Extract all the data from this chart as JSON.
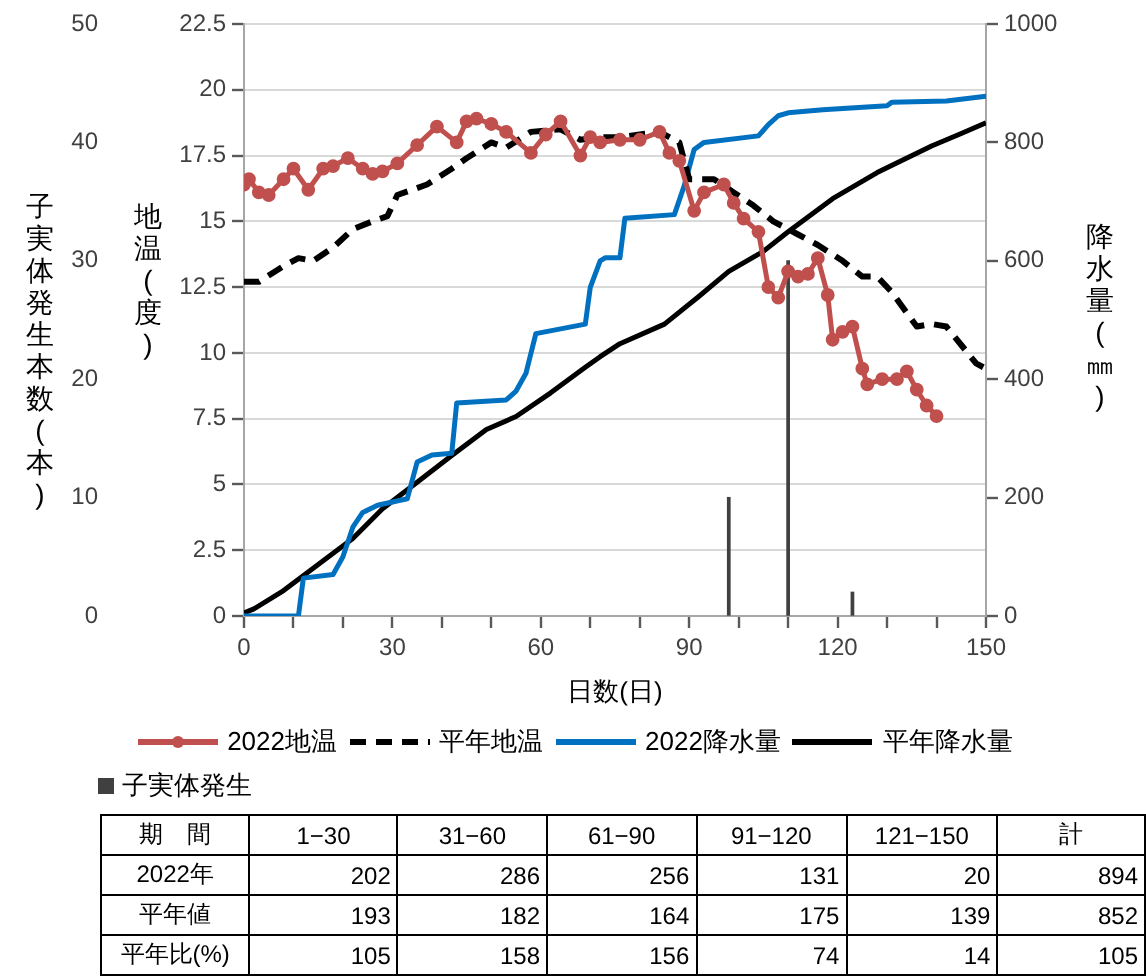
{
  "chart_data": [
    {
      "type": "line",
      "xlabel": "日数(日)",
      "ylabel": "地温(度)",
      "y2label": "降水量(㎜)",
      "y3label": "子実体発生本数(本)",
      "xlim": [
        0,
        150
      ],
      "xticks": [
        0,
        {
          "value": 10,
          "label": null
        },
        {
          "value": 20,
          "label": null
        },
        30,
        {
          "value": 40,
          "label": null
        },
        {
          "value": 50,
          "label": null
        },
        60,
        {
          "value": 70,
          "label": null
        },
        {
          "value": 80,
          "label": null
        },
        90,
        {
          "value": 100,
          "label": null
        },
        {
          "value": 110,
          "label": null
        },
        120,
        {
          "value": 130,
          "label": null
        },
        {
          "value": 140,
          "label": null
        },
        150
      ],
      "ylim": [
        0,
        22.5
      ],
      "yticks": [
        0,
        2.5,
        5,
        7.5,
        10,
        12.5,
        15,
        17.5,
        20,
        22.5
      ],
      "y2lim": [
        0,
        1000
      ],
      "y2ticks": [
        0,
        200,
        400,
        600,
        800,
        1000
      ],
      "y3lim": [
        0,
        50
      ],
      "y3ticks": [
        0,
        10,
        20,
        30,
        40,
        50
      ],
      "grid": "y",
      "legend": "bottom",
      "series": [
        {
          "name": "2022地温",
          "type": "line",
          "color": "#c0504d",
          "marker": "circle",
          "line_style": "solid",
          "x": [
            0,
            1,
            3,
            5,
            8,
            10,
            13,
            16,
            18,
            21,
            24,
            26,
            28,
            31,
            35,
            39,
            43,
            45,
            47,
            50,
            53,
            58,
            61,
            64,
            68,
            70,
            72,
            76,
            80,
            84,
            86,
            88,
            91,
            93,
            97,
            99,
            101,
            104,
            106,
            108,
            110,
            112,
            114,
            116,
            118,
            119,
            121,
            123,
            125,
            126,
            129,
            132,
            134,
            136,
            138,
            140
          ],
          "values": [
            16.4,
            16.6,
            16.1,
            16.0,
            16.6,
            17.0,
            16.2,
            17.0,
            17.1,
            17.4,
            17.0,
            16.8,
            16.9,
            17.2,
            17.9,
            18.6,
            18.0,
            18.8,
            18.9,
            18.7,
            18.4,
            17.6,
            18.3,
            18.8,
            17.5,
            18.2,
            18.0,
            18.1,
            18.1,
            18.4,
            17.6,
            17.3,
            15.4,
            16.1,
            16.4,
            15.7,
            15.1,
            14.6,
            12.5,
            12.1,
            13.1,
            12.9,
            13.0,
            13.6,
            12.2,
            10.5,
            10.8,
            11.0,
            9.4,
            8.8,
            9.0,
            9.0,
            9.3,
            8.6,
            8.0,
            7.6
          ]
        },
        {
          "name": "平年地温",
          "type": "line",
          "color": "#000000",
          "marker": "none",
          "line_style": "dashed",
          "x": [
            0,
            3,
            8,
            11,
            14,
            18,
            22,
            26,
            29,
            31,
            37,
            42,
            45,
            50,
            53,
            58,
            64,
            68,
            72,
            76,
            80,
            84,
            88,
            90,
            95,
            99,
            103,
            107,
            112,
            116,
            121,
            125,
            128,
            131,
            136,
            139,
            142,
            145,
            148,
            150
          ],
          "values": [
            12.7,
            12.7,
            13.3,
            13.6,
            13.5,
            14.0,
            14.7,
            15.0,
            15.2,
            16.0,
            16.4,
            17.0,
            17.4,
            18.0,
            17.8,
            18.4,
            18.5,
            18.1,
            18.2,
            18.2,
            18.3,
            18.4,
            18.0,
            16.6,
            16.6,
            16.1,
            15.6,
            15.0,
            14.5,
            14.1,
            13.5,
            12.9,
            12.9,
            12.3,
            11.0,
            11.1,
            11.0,
            10.3,
            9.6,
            9.4
          ]
        },
        {
          "name": "2022降水量",
          "type": "line",
          "axis": "y2",
          "color": "#0070c0",
          "marker": "none",
          "line_style": "solid",
          "x": [
            0,
            11,
            12,
            18,
            20,
            22,
            24,
            27,
            33,
            35,
            38,
            42,
            43,
            53,
            55,
            57,
            59,
            69,
            70,
            72,
            73,
            76,
            77,
            87,
            89,
            91,
            93,
            104,
            106,
            108,
            110,
            117,
            130,
            131,
            142,
            150
          ],
          "values": [
            0,
            0,
            64,
            70,
            100,
            150,
            175,
            187,
            198,
            260,
            272,
            275,
            360,
            365,
            380,
            410,
            477,
            493,
            555,
            600,
            605,
            605,
            672,
            678,
            727,
            788,
            800,
            811,
            830,
            845,
            850,
            855,
            862,
            868,
            870,
            878
          ]
        },
        {
          "name": "平年降水量",
          "type": "line",
          "axis": "y2",
          "color": "#000000",
          "marker": "none",
          "line_style": "solid",
          "x": [
            0,
            2,
            8,
            15,
            22,
            28,
            35,
            42,
            49,
            55,
            62,
            69,
            72,
            76,
            85,
            92,
            98,
            105,
            110,
            119,
            128,
            139,
            145,
            150
          ],
          "values": [
            5,
            12,
            43,
            87,
            131,
            181,
            226,
            271,
            315,
            337,
            377,
            420,
            438,
            460,
            493,
            540,
            582,
            616,
            649,
            705,
            749,
            794,
            815,
            833
          ]
        },
        {
          "name": "子実体発生",
          "type": "bar",
          "axis": "y3",
          "color": "#404040",
          "x": [
            98,
            110,
            123
          ],
          "values": [
            10,
            30,
            2
          ]
        }
      ]
    },
    {
      "type": "other",
      "xlabel": "期　間",
      "categories": [
        "1−30",
        "31−60",
        "61−90",
        "91−120",
        "121−150",
        "計"
      ],
      "data_labels": true,
      "series": [
        {
          "name": "2022年",
          "values": [
            202,
            286,
            256,
            131,
            20,
            894
          ]
        },
        {
          "name": "平年値",
          "values": [
            193,
            182,
            164,
            175,
            139,
            852
          ]
        },
        {
          "name": "平年比(%)",
          "values": [
            105,
            158,
            156,
            74,
            14,
            105
          ]
        }
      ]
    }
  ]
}
